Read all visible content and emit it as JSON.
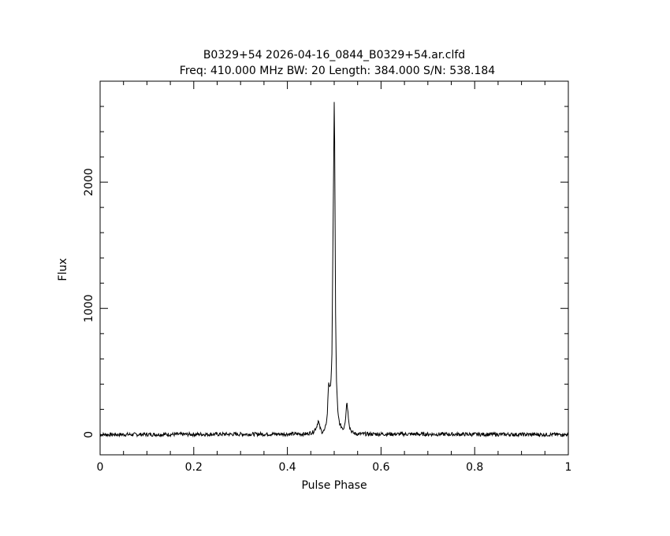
{
  "chart_data": {
    "type": "line",
    "title": "B0329+54 2026-04-16_0844_B0329+54.ar.clfd",
    "subtitle": "Freq: 410.000 MHz BW: 20 Length: 384.000 S/N: 538.184",
    "xlabel": "Pulse Phase",
    "ylabel": "Flux",
    "xlim": [
      0,
      1
    ],
    "ylim": [
      -160,
      2800
    ],
    "x_ticks": [
      0,
      0.2,
      0.4,
      0.6,
      0.8,
      1
    ],
    "x_tick_labels": [
      "0",
      "0.2",
      "0.4",
      "0.6",
      "0.8",
      "1"
    ],
    "y_ticks": [
      0,
      1000,
      2000
    ],
    "y_tick_labels": [
      "0",
      "1000",
      "2000"
    ],
    "grid": false,
    "color": "#000000",
    "series": [
      {
        "x": [
          0,
          0.44,
          0.455,
          0.462,
          0.466,
          0.47,
          0.474,
          0.48,
          0.485,
          0.488,
          0.492,
          0.495,
          0.497,
          0.499,
          0.5,
          0.501,
          0.502,
          0.503,
          0.505,
          0.508,
          0.512,
          0.516,
          0.52,
          0.524,
          0.527,
          0.53,
          0.533,
          0.537,
          0.542,
          0.55,
          1
        ],
        "y": [
          0,
          5,
          20,
          60,
          110,
          50,
          20,
          35,
          140,
          420,
          360,
          600,
          1400,
          2200,
          2640,
          2300,
          1600,
          900,
          400,
          160,
          80,
          60,
          45,
          120,
          270,
          150,
          60,
          25,
          10,
          5,
          0
        ]
      }
    ]
  }
}
